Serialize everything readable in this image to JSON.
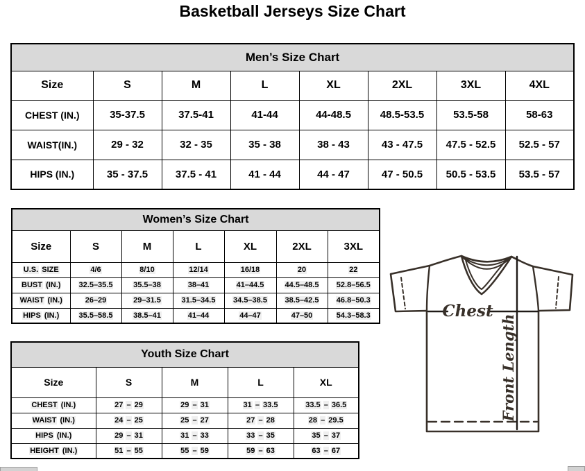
{
  "page_title": "Basketball Jerseys Size Chart",
  "colors": {
    "table_header_fill": "#d9d9d9",
    "table_border": "#000000",
    "cell_shading": "#efefef",
    "jersey_line": "#383029"
  },
  "tables": {
    "men": {
      "title": "Men’s Size Chart",
      "columns": [
        "Size",
        "S",
        "M",
        "L",
        "XL",
        "2XL",
        "3XL",
        "4XL"
      ],
      "rows": [
        {
          "label": "CHEST (IN.)",
          "values": [
            "35-37.5",
            "37.5-41",
            "41-44",
            "44-48.5",
            "48.5-53.5",
            "53.5-58",
            "58-63"
          ]
        },
        {
          "label": "WAIST(IN.)",
          "values": [
            "29 - 32",
            "32 - 35",
            "35 - 38",
            "38 - 43",
            "43 - 47.5",
            "47.5 - 52.5",
            "52.5 - 57"
          ]
        },
        {
          "label": "HIPS (IN.)",
          "values": [
            "35 - 37.5",
            "37.5 - 41",
            "41 - 44",
            "44 - 47",
            "47 - 50.5",
            "50.5 - 53.5",
            "53.5 - 57"
          ]
        }
      ]
    },
    "women": {
      "title": "Women’s Size Chart",
      "columns": [
        "Size",
        "S",
        "M",
        "L",
        "XL",
        "2XL",
        "3XL"
      ],
      "rows": [
        {
          "label": "U.S. SIZE",
          "values": [
            "4/6",
            "8/10",
            "12/14",
            "16/18",
            "20",
            "22"
          ]
        },
        {
          "label": "BUST (IN.)",
          "values": [
            "32.5–35.5",
            "35.5–38",
            "38–41",
            "41–44.5",
            "44.5–48.5",
            "52.8–56.5"
          ]
        },
        {
          "label": "WAIST (IN.)",
          "values": [
            "26–29",
            "29–31.5",
            "31.5–34.5",
            "34.5–38.5",
            "38.5–42.5",
            "46.8–50.3"
          ]
        },
        {
          "label": "HIPS (IN.)",
          "values": [
            "35.5–58.5",
            "38.5–41",
            "41–44",
            "44–47",
            "47–50",
            "54.3–58.3"
          ]
        }
      ]
    },
    "youth": {
      "title": "Youth Size Chart",
      "columns": [
        "Size",
        "S",
        "M",
        "L",
        "XL"
      ],
      "rows": [
        {
          "label": "CHEST (IN.)",
          "values": [
            "27 – 29",
            "29 – 31",
            "31 – 33.5",
            "33.5 – 36.5"
          ]
        },
        {
          "label": "WAIST (IN.)",
          "values": [
            "24 – 25",
            "25 – 27",
            "27 – 28",
            "28 – 29.5"
          ]
        },
        {
          "label": "HIPS (IN.)",
          "values": [
            "29 – 31",
            "31 – 33",
            "33 – 35",
            "35 – 37"
          ]
        },
        {
          "label": "HEIGHT (IN.)",
          "values": [
            "51 – 55",
            "55 – 59",
            "59 – 63",
            "63 – 67"
          ]
        }
      ]
    }
  },
  "diagram": {
    "chest_label": "Chest",
    "front_length_label": "Front Length"
  }
}
